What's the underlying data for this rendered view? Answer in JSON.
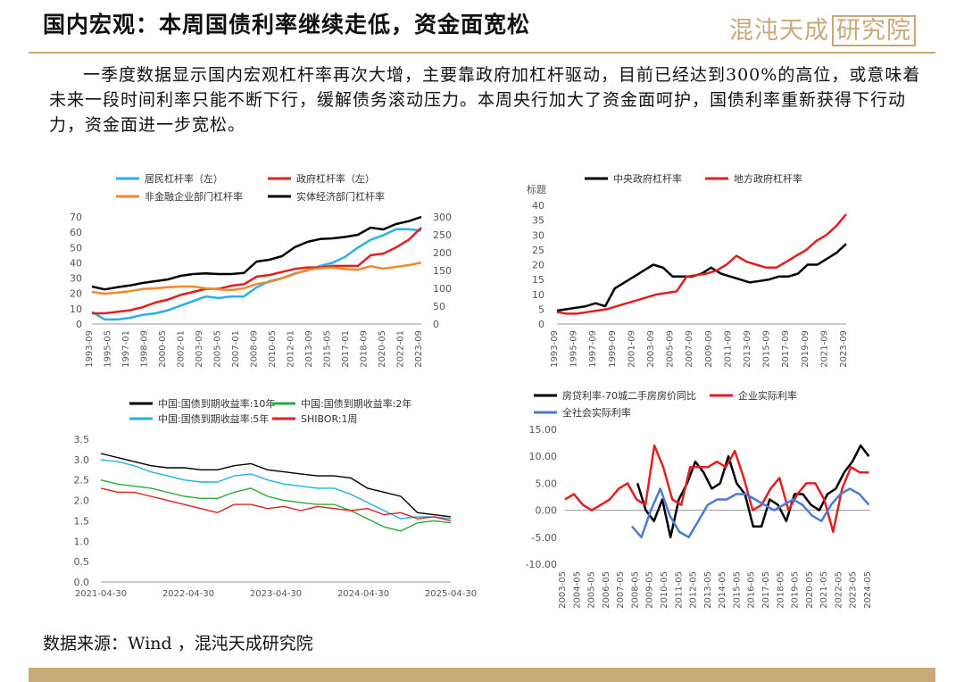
{
  "header": {
    "title": "国内宏观：本周国债利率继续走低，资金面宽松",
    "logo_text": "混沌天成",
    "logo_boxed": "研究院"
  },
  "body_text": "一季度数据显示国内宏观杠杆率再次大增，主要靠政府加杠杆驱动，目前已经达到300%的高位，或意味着未来一段时间利率只能不断下行，缓解债务滚动压力。本周央行加大了资金面呵护，国债利率重新获得下行动力，资金面进一步宽松。",
  "source": "数据来源：Wind ，混沌天成研究院",
  "colors": {
    "accent": "#c9a97a"
  },
  "chart_data": [
    {
      "type": "line",
      "legend": [
        "居民杠杆率（左）",
        "政府杠杆率（左）",
        "非金融企业部门杠杆率",
        "实体经济部门杠杆率"
      ],
      "colors": [
        "#2ab0e8",
        "#e02020",
        "#ee8a2e",
        "#000000"
      ],
      "ylim_left": [
        0,
        70
      ],
      "yticks_left": [
        "70",
        "60",
        "50",
        "40",
        "30",
        "20",
        "10",
        "0"
      ],
      "ylim_right": [
        0,
        300
      ],
      "yticks_right": [
        "300",
        "250",
        "200",
        "150",
        "100",
        "50",
        "0"
      ],
      "xticks": [
        "1993-09",
        "1995-05",
        "1997-01",
        "1998-09",
        "2000-05",
        "2002-01",
        "2003-09",
        "2005-05",
        "2007-01",
        "2008-09",
        "2010-05",
        "2012-01",
        "2013-09",
        "2015-05",
        "2017-01",
        "2018-09",
        "2020-05",
        "2022-01",
        "2023-09"
      ],
      "series": [
        {
          "name": "居民杠杆率（左）",
          "axis": "left",
          "values": [
            8,
            3,
            3,
            4,
            6,
            7,
            9,
            12,
            15,
            18,
            17,
            18,
            18,
            24,
            28,
            30,
            33,
            35,
            38,
            40,
            44,
            50,
            55,
            58,
            62,
            62,
            61
          ]
        },
        {
          "name": "政府杠杆率（左）",
          "axis": "left",
          "values": [
            7,
            7,
            8,
            9,
            11,
            14,
            16,
            19,
            21,
            23,
            23,
            25,
            26,
            31,
            32,
            34,
            36,
            37,
            37,
            38,
            38,
            38,
            45,
            46,
            50,
            55,
            63
          ]
        },
        {
          "name": "非金融企业部门杠杆率",
          "axis": "right",
          "values": [
            90,
            85,
            88,
            92,
            98,
            100,
            103,
            105,
            105,
            100,
            97,
            95,
            100,
            112,
            118,
            128,
            140,
            152,
            156,
            158,
            154,
            152,
            162,
            155,
            160,
            165,
            172
          ]
        },
        {
          "name": "实体经济部门杠杆率",
          "axis": "right",
          "values": [
            105,
            97,
            103,
            108,
            115,
            120,
            125,
            135,
            140,
            142,
            140,
            140,
            143,
            175,
            180,
            190,
            215,
            230,
            238,
            240,
            244,
            250,
            270,
            265,
            280,
            288,
            300
          ]
        }
      ]
    },
    {
      "type": "line",
      "legend": [
        "中央政府杠杆率",
        "地方政府杠杆率"
      ],
      "colors": [
        "#000000",
        "#e02020"
      ],
      "ylabel": "标题",
      "ylim": [
        0,
        40
      ],
      "yticks": [
        "40",
        "35",
        "30",
        "25",
        "20",
        "15",
        "10",
        "5",
        "0"
      ],
      "xticks": [
        "1993-09",
        "1995-09",
        "1997-09",
        "1999-09",
        "2001-09",
        "2003-09",
        "2005-09",
        "2007-09",
        "2009-09",
        "2011-09",
        "2013-09",
        "2015-09",
        "2017-09",
        "2019-09",
        "2021-09",
        "2023-09"
      ],
      "series": [
        {
          "name": "中央政府杠杆率",
          "values": [
            4.5,
            5,
            5.5,
            6,
            7,
            6,
            12,
            14,
            16,
            18,
            20,
            19,
            16,
            16,
            16,
            17,
            19,
            17,
            16,
            15,
            14,
            14.5,
            15,
            16,
            16,
            17,
            20,
            20,
            22,
            24,
            27
          ]
        },
        {
          "name": "地方政府杠杆率",
          "values": [
            4,
            3.5,
            3.5,
            4,
            4.5,
            5,
            6,
            7,
            8,
            9,
            10,
            10.5,
            11,
            16,
            16.5,
            17,
            18,
            20,
            23,
            21,
            20,
            19,
            19,
            21,
            23,
            25,
            28,
            30,
            33,
            37
          ]
        }
      ]
    },
    {
      "type": "line",
      "legend": [
        "中国:国债到期收益率:10年",
        "中国:国债到期收益率:2年",
        "中国:国债到期收益率:5年",
        "SHIBOR:1周"
      ],
      "colors": [
        "#000000",
        "#2aaa3a",
        "#22b0e0",
        "#e02020"
      ],
      "ylim": [
        0,
        3.5
      ],
      "yticks": [
        "3.5",
        "3.0",
        "2.5",
        "2.0",
        "1.5",
        "1.0",
        "0.5",
        "0.0"
      ],
      "xticks": [
        "2021-04-30",
        "2022-04-30",
        "2023-04-30",
        "2024-04-30",
        "2025-04-30"
      ],
      "series": [
        {
          "name": "中国:国债到期收益率:10年",
          "values": [
            3.15,
            3.05,
            2.95,
            2.85,
            2.8,
            2.8,
            2.75,
            2.75,
            2.85,
            2.9,
            2.75,
            2.7,
            2.65,
            2.6,
            2.6,
            2.55,
            2.3,
            2.2,
            2.1,
            1.7,
            1.65,
            1.6
          ]
        },
        {
          "name": "中国:国债到期收益率:2年",
          "values": [
            2.5,
            2.4,
            2.35,
            2.3,
            2.2,
            2.1,
            2.05,
            2.05,
            2.2,
            2.3,
            2.1,
            2.0,
            1.95,
            1.9,
            1.9,
            1.75,
            1.55,
            1.35,
            1.25,
            1.45,
            1.5,
            1.45
          ]
        },
        {
          "name": "中国:国债到期收益率:5年",
          "values": [
            3.0,
            2.95,
            2.85,
            2.7,
            2.6,
            2.5,
            2.45,
            2.45,
            2.6,
            2.65,
            2.5,
            2.4,
            2.35,
            2.3,
            2.3,
            2.15,
            1.95,
            1.75,
            1.55,
            1.6,
            1.6,
            1.55
          ]
        },
        {
          "name": "SHIBOR:1周",
          "values": [
            2.3,
            2.2,
            2.2,
            2.1,
            2.0,
            1.9,
            1.8,
            1.7,
            1.9,
            1.9,
            1.8,
            1.85,
            1.75,
            1.85,
            1.8,
            1.75,
            1.8,
            1.65,
            1.7,
            1.55,
            1.6,
            1.5
          ]
        }
      ]
    },
    {
      "type": "line",
      "legend": [
        "房贷利率-70城二手房房价同比",
        "企业实际利率",
        "全社会实际利率"
      ],
      "colors": [
        "#000000",
        "#e02020",
        "#4a7bd0"
      ],
      "ylim": [
        -10,
        15
      ],
      "yticks": [
        "15.00",
        "10.00",
        "5.00",
        "0.00",
        "-5.00",
        "-10.00"
      ],
      "xticks": [
        "2003-05",
        "2004-05",
        "2005-05",
        "2006-05",
        "2007-05",
        "2008-05",
        "2009-05",
        "2010-05",
        "2011-05",
        "2012-05",
        "2013-05",
        "2014-05",
        "2015-05",
        "2016-05",
        "2017-05",
        "2018-05",
        "2019-05",
        "2020-05",
        "2021-05",
        "2022-05",
        "2023-05",
        "2024-05"
      ],
      "series": [
        {
          "name": "房贷利率-70城二手房房价同比",
          "x_start": 2008.2,
          "x_end": 2024.8,
          "values": [
            5,
            0,
            -2,
            2,
            -5,
            2,
            5,
            9,
            7,
            4,
            5,
            10,
            5,
            3,
            -3,
            -3,
            2,
            1,
            -2,
            3,
            3,
            1,
            0,
            3,
            4,
            7,
            9,
            12,
            10
          ]
        },
        {
          "name": "企业实际利率",
          "x_start": 2003.0,
          "x_end": 2024.8,
          "values": [
            2,
            3,
            1,
            0,
            1,
            2,
            4,
            5,
            2,
            1,
            12,
            8,
            2,
            1,
            8,
            8,
            8,
            9,
            8,
            11,
            6,
            0,
            1,
            4,
            6,
            0,
            3,
            5,
            5,
            2,
            -4,
            4,
            8,
            7,
            7
          ]
        },
        {
          "name": "全社会实际利率",
          "x_start": 2007.8,
          "x_end": 2024.8,
          "values": [
            -3,
            -5,
            0,
            4,
            -1,
            -4,
            -5,
            -2,
            1,
            2,
            2,
            3,
            3,
            2,
            1,
            0,
            1,
            2,
            1,
            -1,
            -2,
            1,
            3,
            4,
            3,
            1
          ]
        }
      ]
    }
  ]
}
